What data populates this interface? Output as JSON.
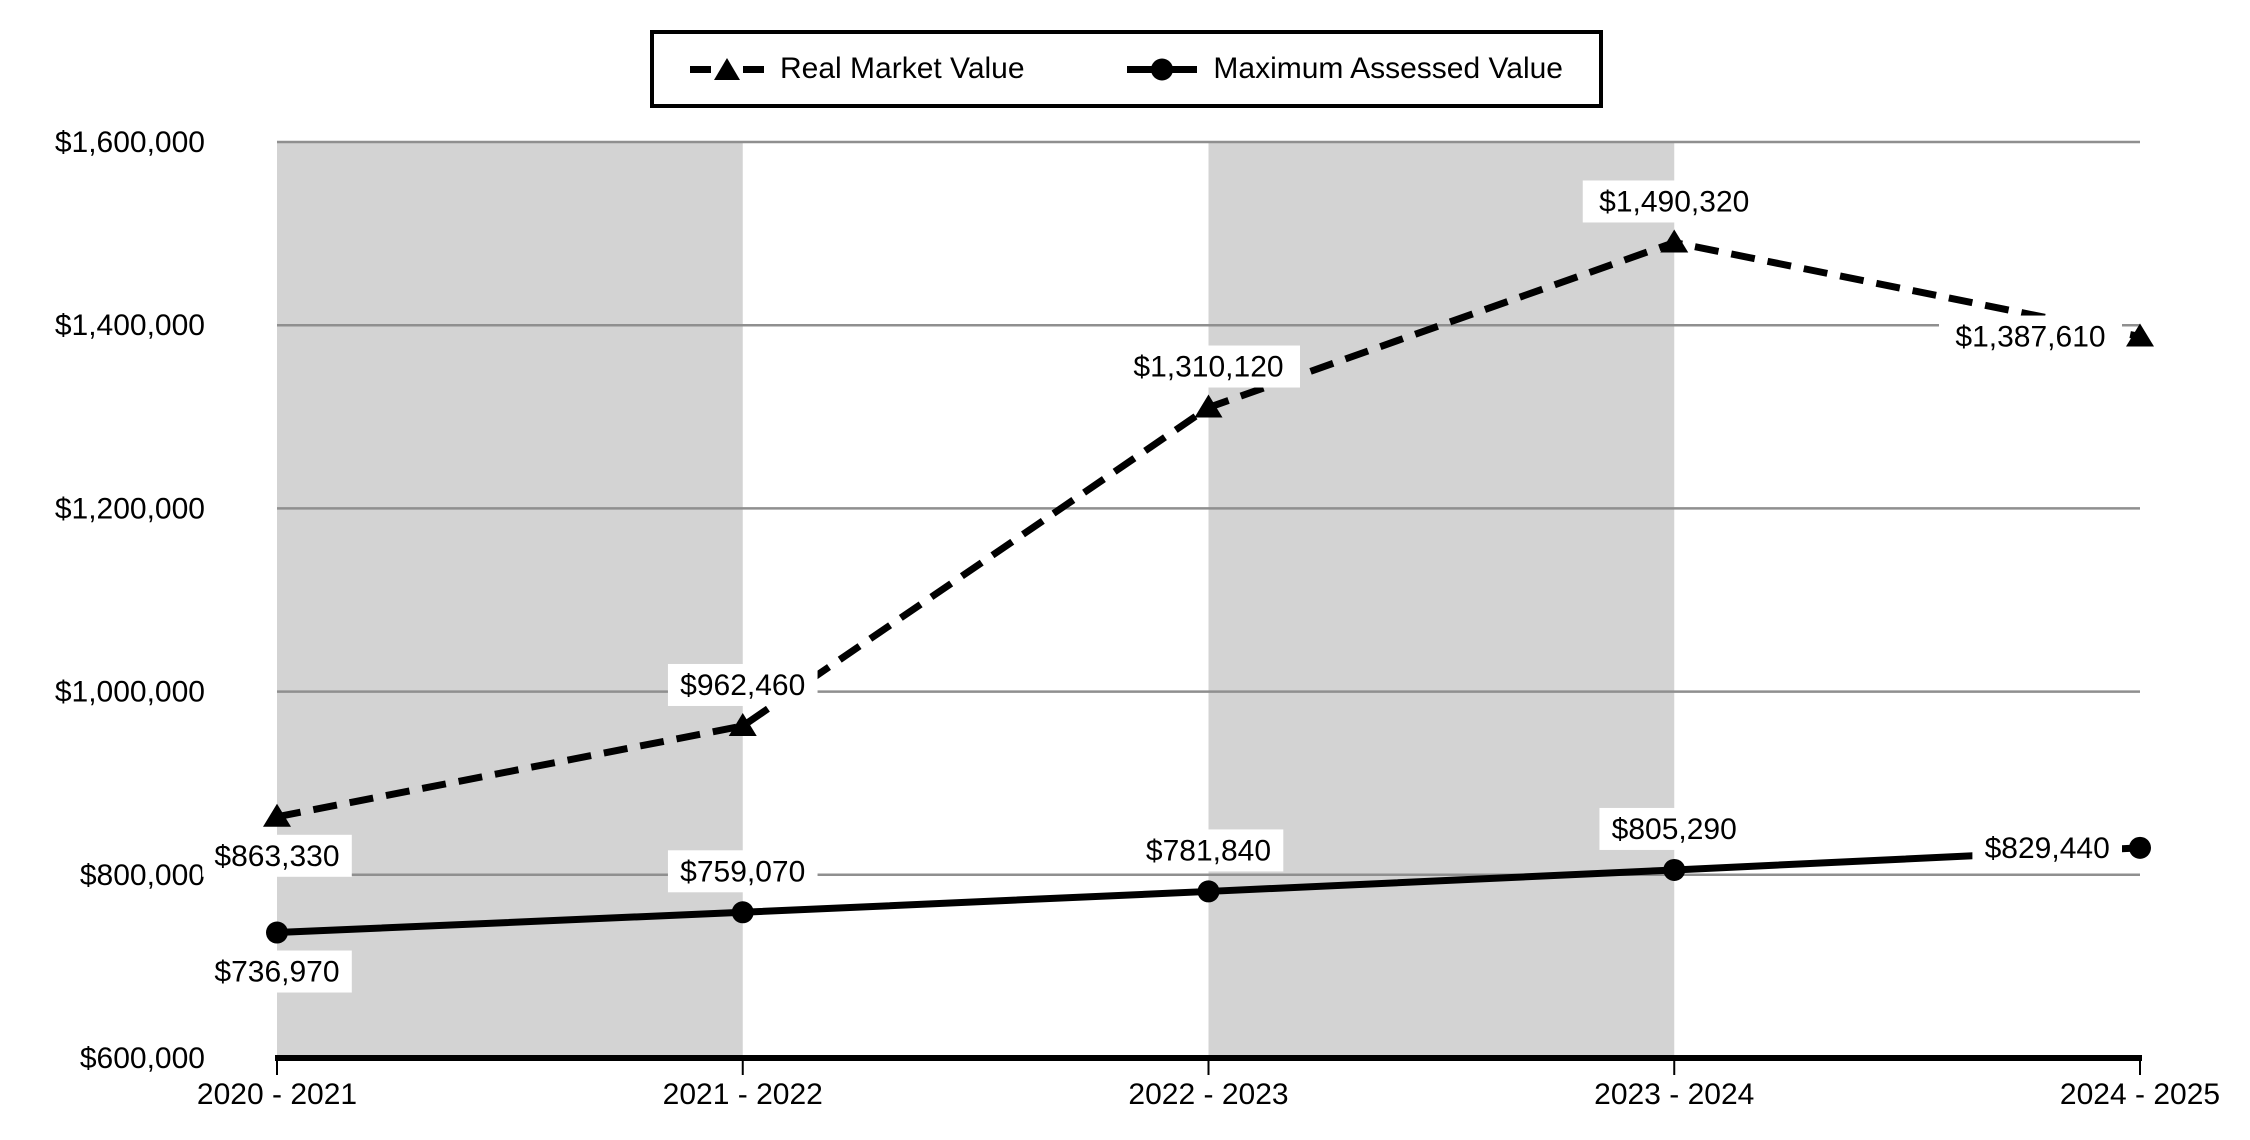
{
  "chart_data": {
    "type": "line",
    "title": "",
    "xlabel": "",
    "ylabel": "",
    "x_categories": [
      "2020 - 2021",
      "2021 - 2022",
      "2022 - 2023",
      "2023 - 2024",
      "2024 - 2025"
    ],
    "y_axis": {
      "min": 600000,
      "max": 1600000,
      "tick_step": 200000,
      "tick_labels": [
        "$600,000",
        "$800,000",
        "$1,000,000",
        "$1,200,000",
        "$1,400,000",
        "$1,600,000"
      ]
    },
    "grid": true,
    "legend": {
      "position": "top-center",
      "items": [
        {
          "label": "Real Market Value",
          "marker": "triangle",
          "line_style": "dashed"
        },
        {
          "label": "Maximum Assessed Value",
          "marker": "circle",
          "line_style": "solid"
        }
      ]
    },
    "series": [
      {
        "name": "Real Market Value",
        "slug": "real-market-value",
        "marker": "triangle",
        "line_style": "dashed",
        "values": [
          863330,
          962460,
          1310120,
          1490320,
          1387610
        ],
        "data_labels": [
          "$863,330",
          "$962,460",
          "$1,310,120",
          "$1,490,320",
          "$1,387,610"
        ],
        "label_placement": [
          "below",
          "above",
          "above",
          "above",
          "left"
        ]
      },
      {
        "name": "Maximum Assessed Value",
        "slug": "maximum-assessed-value",
        "marker": "circle",
        "line_style": "solid",
        "values": [
          736970,
          759070,
          781840,
          805290,
          829440
        ],
        "data_labels": [
          "$736,970",
          "$759,070",
          "$781,840",
          "$805,290",
          "$829,440"
        ],
        "label_placement": [
          "below",
          "above",
          "above",
          "above",
          "left"
        ]
      }
    ],
    "plot_bands": {
      "color": "#d3d3d3",
      "band_start_indices": [
        0,
        2
      ]
    },
    "colors": {
      "series_color": "#000000",
      "gridline": "#8f8f8f",
      "axis_line": "#000000",
      "background": "#ffffff",
      "data_label_background": "#ffffff",
      "text": "#000000"
    }
  }
}
